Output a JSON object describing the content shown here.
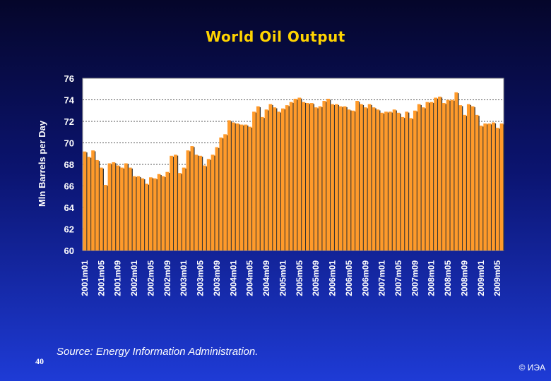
{
  "slide": {
    "number": "40",
    "source": "Source: Energy Information Administration.",
    "copyright": "© ИЭА"
  },
  "colors": {
    "bar_fill": "#ff9a2a",
    "bar_shadow": "#333333",
    "plot_bg": "#ffffff",
    "title": "#ffd400",
    "text": "#ffffff"
  },
  "chart_data": {
    "type": "bar",
    "title": "World Oil Output",
    "xlabel": "",
    "ylabel": "Mln Barrels per Day",
    "ylim": [
      60,
      76
    ],
    "yticks": [
      60,
      62,
      64,
      66,
      68,
      70,
      72,
      74,
      76
    ],
    "grid": "horizontal-dotted",
    "legend": "none",
    "x_tick_labels": [
      "2001m01",
      "2001m05",
      "2001m09",
      "2002m01",
      "2002m05",
      "2002m09",
      "2003m01",
      "2003m05",
      "2003m09",
      "2004m01",
      "2004m05",
      "2004m09",
      "2005m01",
      "2005m05",
      "2005m09",
      "2006m01",
      "2006m05",
      "2006m09",
      "2007m01",
      "2007m05",
      "2007m09",
      "2008m01",
      "2008m05",
      "2008m09",
      "2009m01",
      "2009m05"
    ],
    "tick_every": 4,
    "start_month": "2001m01",
    "values": [
      69.2,
      68.7,
      69.3,
      68.4,
      67.7,
      66.1,
      68.1,
      68.2,
      67.9,
      67.7,
      68.1,
      67.7,
      66.9,
      66.9,
      66.7,
      66.2,
      66.8,
      66.7,
      67.1,
      66.9,
      67.3,
      68.8,
      68.9,
      67.2,
      67.7,
      69.3,
      69.7,
      68.9,
      68.8,
      67.9,
      68.5,
      68.9,
      69.6,
      70.5,
      70.8,
      72.1,
      71.9,
      71.8,
      71.7,
      71.7,
      71.5,
      72.9,
      73.4,
      72.4,
      73.1,
      73.6,
      73.3,
      72.9,
      73.2,
      73.5,
      73.8,
      74.1,
      74.2,
      73.8,
      73.7,
      73.7,
      73.3,
      73.4,
      73.9,
      74.1,
      73.6,
      73.6,
      73.4,
      73.4,
      73.1,
      73.0,
      73.9,
      73.6,
      73.3,
      73.6,
      73.3,
      73.1,
      72.8,
      72.9,
      72.9,
      73.1,
      72.8,
      72.4,
      72.9,
      72.3,
      73.0,
      73.6,
      73.3,
      73.8,
      73.8,
      74.2,
      74.3,
      73.7,
      74.0,
      74.0,
      74.7,
      73.5,
      72.6,
      73.6,
      73.4,
      72.6,
      71.6,
      71.8,
      71.8,
      71.9,
      71.4,
      71.8
    ]
  }
}
